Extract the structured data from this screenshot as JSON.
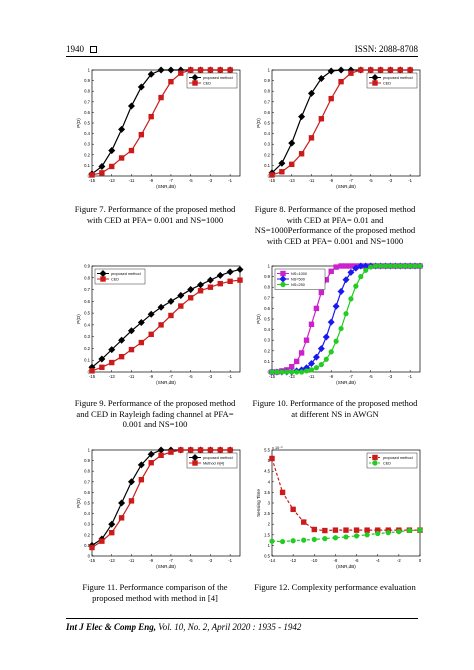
{
  "header": {
    "page_number": "1940",
    "issn": "ISSN: 2088-8708"
  },
  "footer": {
    "journal": "Int J Elec & Comp Eng,",
    "details": "Vol. 10, No. 2, April 2020 : 1935 - 1942"
  },
  "figures": [
    {
      "caption": "Figure 7. Performance of the proposed method with CED at PFA= 0.001 and NS=1000"
    },
    {
      "caption": "Figure 8. Performance of the proposed method with CED at PFA= 0.01 and NS=1000Performance of the proposed method with CED at PFA= 0.001 and NS=1000"
    },
    {
      "caption": "Figure 9. Performance of the proposed method and CED in Rayleigh fading channel at PFA= 0.001 and NS=100"
    },
    {
      "caption": "Figure 10. Performance of the proposed method at different NS in AWGN"
    },
    {
      "caption": "Figure 11. Performance comparison of the proposed method with method in [4]"
    },
    {
      "caption": "Figure 12. Complexity performance evaluation"
    }
  ],
  "chart_data": [
    {
      "type": "line",
      "xlabel": "(SNR,dB)",
      "ylabel": "P(D)",
      "xlim": [
        -15,
        0
      ],
      "ylim": [
        0,
        1
      ],
      "xticks": [
        "-15",
        "-13",
        "-11",
        "-9",
        "-7",
        "-5",
        "-3",
        "-1"
      ],
      "yticks": [
        "0",
        "0.1",
        "0.2",
        "0.3",
        "0.4",
        "0.5",
        "0.6",
        "0.7",
        "0.8",
        "0.9",
        "1"
      ],
      "legend_position": "top-right",
      "series": [
        {
          "name": "proposed method",
          "color": "#000000",
          "marker": "diamond",
          "x": [
            -15,
            -14,
            -13,
            -12,
            -11,
            -10,
            -9,
            -8,
            -7,
            -6,
            -5,
            -4,
            -3,
            -2,
            -1
          ],
          "y": [
            0.02,
            0.09,
            0.24,
            0.44,
            0.66,
            0.84,
            0.96,
            1,
            1,
            1,
            1,
            1,
            1,
            1,
            1
          ]
        },
        {
          "name": "CED",
          "color": "#cc1b1b",
          "marker": "square",
          "x": [
            -15,
            -14,
            -13,
            -12,
            -11,
            -10,
            -9,
            -8,
            -7,
            -6,
            -5,
            -4,
            -3,
            -2,
            -1
          ],
          "y": [
            0.01,
            0.03,
            0.09,
            0.17,
            0.24,
            0.39,
            0.56,
            0.74,
            0.89,
            0.97,
            1,
            1,
            1,
            1,
            1
          ]
        }
      ]
    },
    {
      "type": "line",
      "xlabel": "(SNR,dB)",
      "ylabel": "P(D)",
      "xlim": [
        -15,
        0
      ],
      "ylim": [
        0,
        1
      ],
      "xticks": [
        "-15",
        "-13",
        "-11",
        "-9",
        "-7",
        "-5",
        "-3",
        "-1"
      ],
      "yticks": [
        "0",
        "0.1",
        "0.2",
        "0.3",
        "0.4",
        "0.5",
        "0.6",
        "0.7",
        "0.8",
        "0.9",
        "1"
      ],
      "legend_position": "top-right",
      "series": [
        {
          "name": "proposed method",
          "color": "#000000",
          "marker": "diamond",
          "x": [
            -15,
            -14,
            -13,
            -12,
            -11,
            -10,
            -9,
            -8,
            -7,
            -6,
            -5,
            -4,
            -3,
            -2,
            -1
          ],
          "y": [
            0.03,
            0.12,
            0.31,
            0.56,
            0.78,
            0.92,
            0.99,
            1,
            1,
            1,
            1,
            1,
            1,
            1,
            1
          ]
        },
        {
          "name": "CED",
          "color": "#cc1b1b",
          "marker": "square",
          "x": [
            -15,
            -14,
            -13,
            -12,
            -11,
            -10,
            -9,
            -8,
            -7,
            -6,
            -5,
            -4,
            -3,
            -2,
            -1
          ],
          "y": [
            0.01,
            0.04,
            0.11,
            0.21,
            0.36,
            0.54,
            0.73,
            0.89,
            0.97,
            1,
            1,
            1,
            1,
            1,
            1
          ]
        }
      ]
    },
    {
      "type": "line",
      "xlabel": "(SNR,dB)",
      "ylabel": "P(D)",
      "xlim": [
        -15,
        0
      ],
      "ylim": [
        0,
        0.9
      ],
      "xticks": [
        "-15",
        "-13",
        "-11",
        "-9",
        "-7",
        "-5",
        "-3",
        "-1"
      ],
      "yticks": [
        "0",
        "0.1",
        "0.2",
        "0.3",
        "0.4",
        "0.5",
        "0.6",
        "0.7",
        "0.8",
        "0.9"
      ],
      "legend_position": "top-left",
      "series": [
        {
          "name": "proposed method",
          "color": "#000000",
          "marker": "diamond",
          "x": [
            -15,
            -14,
            -13,
            -12,
            -11,
            -10,
            -9,
            -8,
            -7,
            -6,
            -5,
            -4,
            -3,
            -2,
            -1,
            0
          ],
          "y": [
            0.04,
            0.11,
            0.19,
            0.27,
            0.35,
            0.42,
            0.49,
            0.55,
            0.6,
            0.65,
            0.7,
            0.74,
            0.78,
            0.82,
            0.85,
            0.87
          ]
        },
        {
          "name": "CED",
          "color": "#cc1b1b",
          "marker": "square",
          "x": [
            -15,
            -14,
            -13,
            -12,
            -11,
            -10,
            -9,
            -8,
            -7,
            -6,
            -5,
            -4,
            -3,
            -2,
            -1,
            0
          ],
          "y": [
            0.01,
            0.04,
            0.08,
            0.13,
            0.19,
            0.25,
            0.32,
            0.4,
            0.48,
            0.56,
            0.63,
            0.69,
            0.72,
            0.75,
            0.77,
            0.78
          ]
        }
      ]
    },
    {
      "type": "line",
      "xlabel": "(SNR,dB)",
      "ylabel": "P(D)",
      "xlim": [
        -15,
        0
      ],
      "ylim": [
        0,
        1
      ],
      "xticks": [
        "-15",
        "-13",
        "-11",
        "-9",
        "-7",
        "-5",
        "-3",
        "-1"
      ],
      "yticks": [
        "0",
        "0.1",
        "0.2",
        "0.3",
        "0.4",
        "0.5",
        "0.6",
        "0.7",
        "0.8",
        "0.9",
        "1"
      ],
      "legend_position": "top-left",
      "series": [
        {
          "name": "NS=1000",
          "color": "#cc22cc",
          "marker": "square",
          "x": [
            -15,
            -14.5,
            -14,
            -13.5,
            -13,
            -12.5,
            -12,
            -11.5,
            -11,
            -10.5,
            -10,
            -9.5,
            -9,
            -8.5,
            -8,
            -7.5,
            -7,
            -6.5,
            -6,
            -5.5,
            -5,
            -4.5,
            -4,
            -3.5,
            -3,
            -2.5,
            -2,
            -1.5,
            -1,
            -0.5,
            0
          ],
          "y": [
            0,
            0,
            0.01,
            0.02,
            0.05,
            0.1,
            0.18,
            0.3,
            0.45,
            0.6,
            0.75,
            0.87,
            0.95,
            0.99,
            1,
            1,
            1,
            1,
            1,
            1,
            1,
            1,
            1,
            1,
            1,
            1,
            1,
            1,
            1,
            1,
            1
          ]
        },
        {
          "name": "NS=500",
          "color": "#1a1aee",
          "marker": "diamond",
          "x": [
            -15,
            -14.5,
            -14,
            -13.5,
            -13,
            -12.5,
            -12,
            -11.5,
            -11,
            -10.5,
            -10,
            -9.5,
            -9,
            -8.5,
            -8,
            -7.5,
            -7,
            -6.5,
            -6,
            -5.5,
            -5,
            -4.5,
            -4,
            -3.5,
            -3,
            -2.5,
            -2,
            -1.5,
            -1,
            -0.5,
            0
          ],
          "y": [
            0,
            0,
            0,
            0,
            0,
            0.01,
            0.02,
            0.04,
            0.08,
            0.14,
            0.22,
            0.33,
            0.47,
            0.62,
            0.76,
            0.87,
            0.94,
            0.98,
            1,
            1,
            1,
            1,
            1,
            1,
            1,
            1,
            1,
            1,
            1,
            1,
            1
          ]
        },
        {
          "name": "NS=250",
          "color": "#22cc22",
          "marker": "circle",
          "x": [
            -15,
            -14.5,
            -14,
            -13.5,
            -13,
            -12.5,
            -12,
            -11.5,
            -11,
            -10.5,
            -10,
            -9.5,
            -9,
            -8.5,
            -8,
            -7.5,
            -7,
            -6.5,
            -6,
            -5.5,
            -5,
            -4.5,
            -4,
            -3.5,
            -3,
            -2.5,
            -2,
            -1.5,
            -1,
            -0.5,
            0
          ],
          "y": [
            0,
            0,
            0,
            0,
            0,
            0,
            0,
            0.01,
            0.02,
            0.04,
            0.07,
            0.12,
            0.19,
            0.29,
            0.41,
            0.55,
            0.69,
            0.81,
            0.9,
            0.96,
            0.99,
            1,
            1,
            1,
            1,
            1,
            1,
            1,
            1,
            1,
            1
          ]
        }
      ]
    },
    {
      "type": "line",
      "xlabel": "(SNR,dB)",
      "ylabel": "P(D)",
      "xlim": [
        -15,
        0
      ],
      "ylim": [
        0,
        1
      ],
      "xticks": [
        "-15",
        "-13",
        "-11",
        "-9",
        "-7",
        "-5",
        "-3",
        "-1"
      ],
      "yticks": [
        "0",
        "0.1",
        "0.2",
        "0.3",
        "0.4",
        "0.5",
        "0.6",
        "0.7",
        "0.8",
        "0.9",
        "1"
      ],
      "legend_position": "top-right",
      "series": [
        {
          "name": "proposed method",
          "color": "#000000",
          "marker": "diamond",
          "x": [
            -15,
            -14,
            -13,
            -12,
            -11,
            -10,
            -9,
            -8,
            -7,
            -6,
            -5,
            -4,
            -3,
            -2,
            -1
          ],
          "y": [
            0.1,
            0.16,
            0.3,
            0.5,
            0.7,
            0.86,
            0.96,
            1,
            1,
            1,
            1,
            1,
            1,
            1,
            1
          ]
        },
        {
          "name": "Method in[4]",
          "color": "#cc1b1b",
          "marker": "square",
          "x": [
            -15,
            -14,
            -13,
            -12,
            -11,
            -10,
            -9,
            -8,
            -7,
            -6,
            -5,
            -4,
            -3,
            -2,
            -1
          ],
          "y": [
            0.08,
            0.14,
            0.22,
            0.36,
            0.52,
            0.72,
            0.88,
            0.95,
            0.98,
            1,
            1,
            1,
            1,
            1,
            1
          ]
        }
      ]
    },
    {
      "type": "line",
      "xlabel": "(SNR,dB)",
      "ylabel": "Sensing Time",
      "y_multiplier": "x 10⁻³",
      "xlim": [
        -14,
        0
      ],
      "ylim": [
        0.5,
        5.5
      ],
      "xticks": [
        "-14",
        "-12",
        "-10",
        "-8",
        "-6",
        "-4",
        "-2",
        "0"
      ],
      "yticks": [
        "0.5",
        "1",
        "1.5",
        "2",
        "2.5",
        "3",
        "3.5",
        "4",
        "4.5",
        "5",
        "5.5"
      ],
      "legend_position": "top-right",
      "series": [
        {
          "name": "proposed method",
          "color": "#cc1b1b",
          "marker": "square",
          "dashed": true,
          "x": [
            -14,
            -13,
            -12,
            -11,
            -10,
            -9,
            -8,
            -7,
            -6,
            -5,
            -4,
            -3,
            -2,
            -1,
            0
          ],
          "y": [
            5.1,
            3.5,
            2.7,
            2.1,
            1.75,
            1.7,
            1.72,
            1.72,
            1.72,
            1.72,
            1.72,
            1.72,
            1.72,
            1.72,
            1.72
          ]
        },
        {
          "name": "CED",
          "color": "#22cc22",
          "marker": "circle",
          "dashed": true,
          "x": [
            -14,
            -13,
            -12,
            -11,
            -10,
            -9,
            -8,
            -7,
            -6,
            -5,
            -4,
            -3,
            -2,
            -1,
            0
          ],
          "y": [
            1.2,
            1.18,
            1.22,
            1.25,
            1.28,
            1.32,
            1.36,
            1.4,
            1.45,
            1.5,
            1.56,
            1.6,
            1.65,
            1.7,
            1.72
          ]
        }
      ]
    }
  ]
}
